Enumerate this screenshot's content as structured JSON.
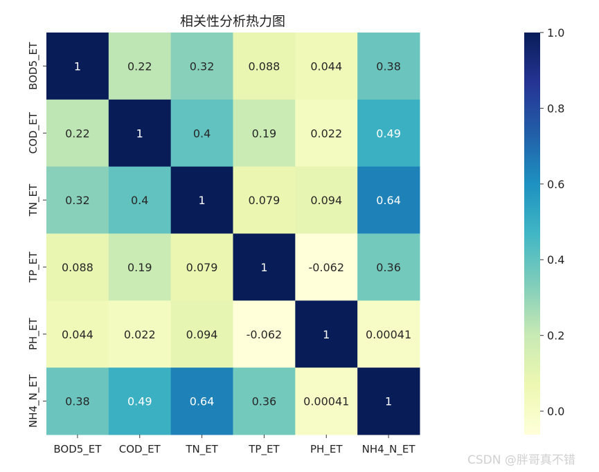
{
  "chart_data": {
    "type": "heatmap",
    "title": "相关性分析热力图",
    "x_labels": [
      "BOD5_ET",
      "COD_ET",
      "TN_ET",
      "TP_ET",
      "PH_ET",
      "NH4_N_ET"
    ],
    "y_labels": [
      "BOD5_ET",
      "COD_ET",
      "TN_ET",
      "TP_ET",
      "PH_ET",
      "NH4_N_ET"
    ],
    "values": [
      [
        1,
        0.22,
        0.32,
        0.088,
        0.044,
        0.38
      ],
      [
        0.22,
        1,
        0.4,
        0.19,
        0.022,
        0.49
      ],
      [
        0.32,
        0.4,
        1,
        0.079,
        0.094,
        0.64
      ],
      [
        0.088,
        0.19,
        0.079,
        1,
        -0.062,
        0.36
      ],
      [
        0.044,
        0.022,
        0.094,
        -0.062,
        1,
        0.00041
      ],
      [
        0.38,
        0.49,
        0.64,
        0.36,
        0.00041,
        1
      ]
    ],
    "annotations": [
      [
        "1",
        "0.22",
        "0.32",
        "0.088",
        "0.044",
        "0.38"
      ],
      [
        "0.22",
        "1",
        "0.4",
        "0.19",
        "0.022",
        "0.49"
      ],
      [
        "0.32",
        "0.4",
        "1",
        "0.079",
        "0.094",
        "0.64"
      ],
      [
        "0.088",
        "0.19",
        "0.079",
        "1",
        "-0.062",
        "0.36"
      ],
      [
        "0.044",
        "0.022",
        "0.094",
        "-0.062",
        "1",
        "0.00041"
      ],
      [
        "0.38",
        "0.49",
        "0.64",
        "0.36",
        "0.00041",
        "1"
      ]
    ],
    "colormap": "YlGnBu",
    "colormap_stops": [
      "#ffffd9",
      "#edf8b1",
      "#c7e9b4",
      "#7fcdbb",
      "#41b6c4",
      "#1d91c0",
      "#225ea8",
      "#253494",
      "#081d58"
    ],
    "vmin": -0.062,
    "vmax": 1,
    "colorbar_ticks": [
      "0.0",
      "0.2",
      "0.4",
      "0.6",
      "0.8",
      "1.0"
    ],
    "colorbar_tick_values": [
      0,
      0.2,
      0.4,
      0.6,
      0.8,
      1.0
    ]
  },
  "watermark": "CSDN @胖哥真不错"
}
